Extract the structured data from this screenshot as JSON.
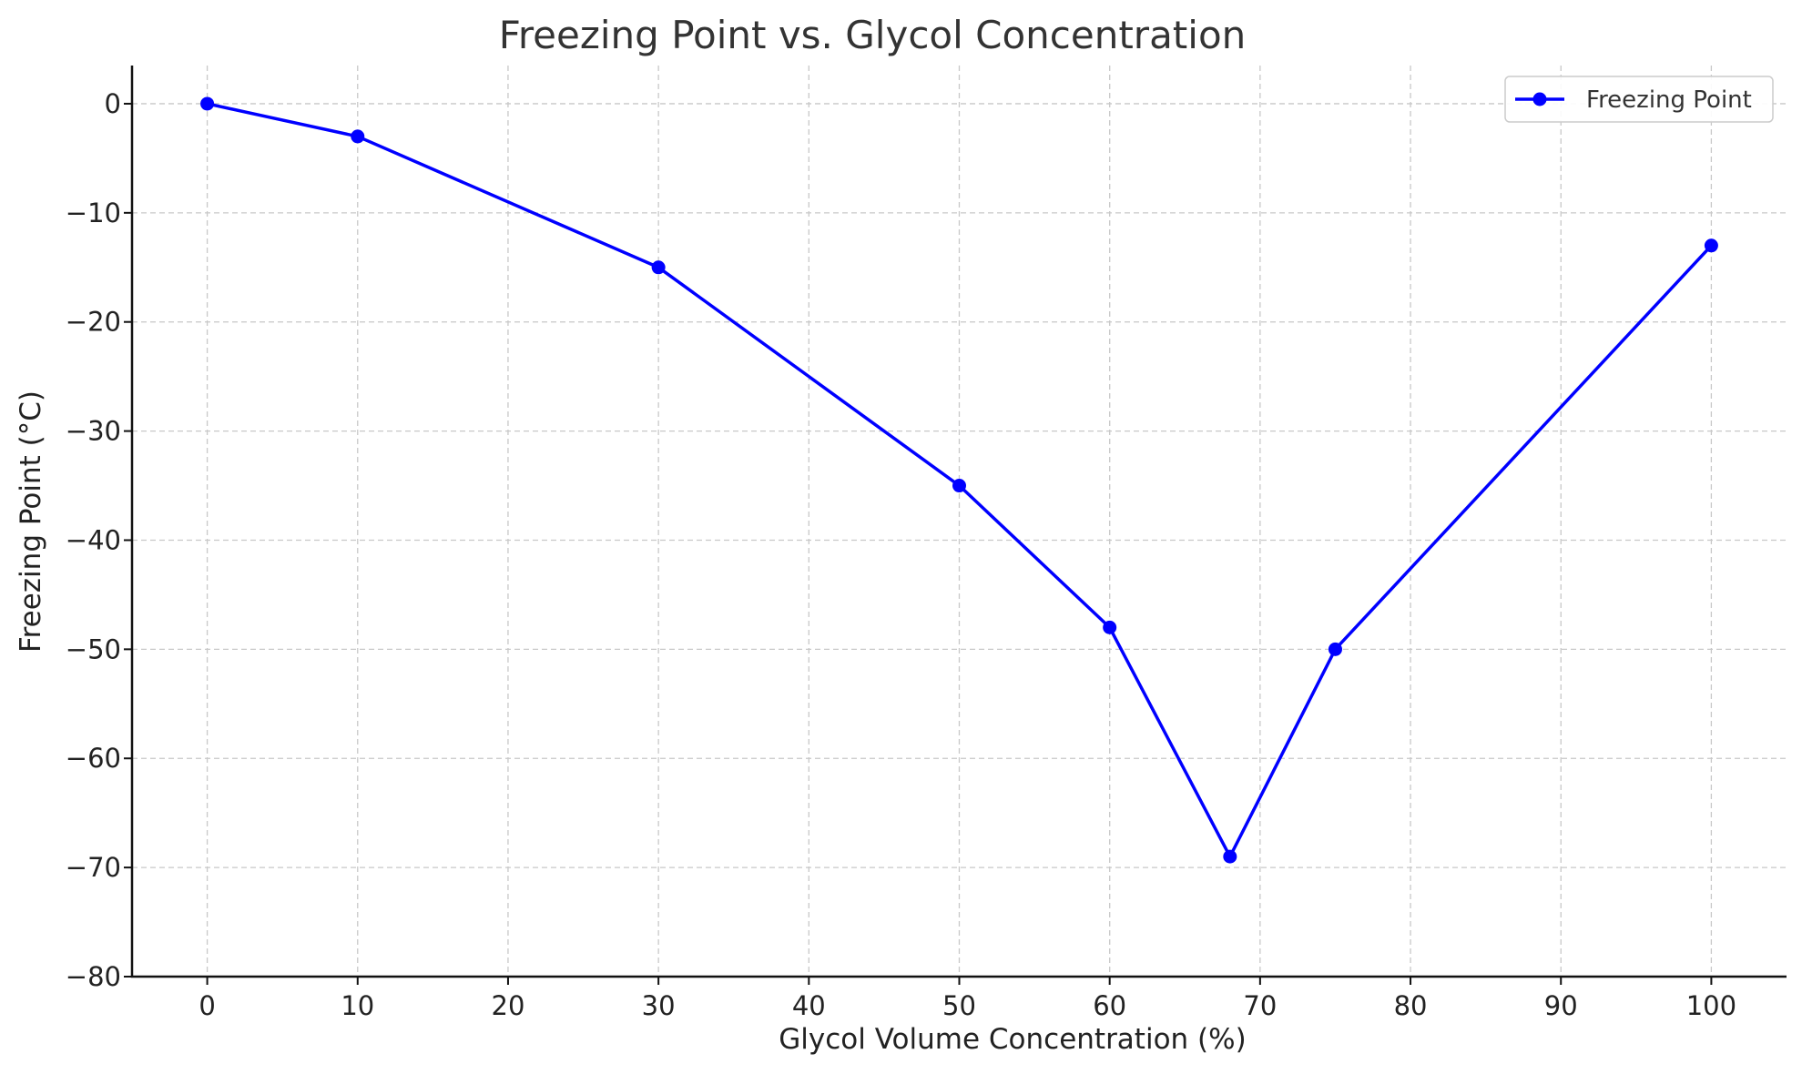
{
  "chart_data": {
    "type": "line",
    "title": "Freezing Point vs. Glycol Concentration",
    "xlabel": "Glycol Volume Concentration (%)",
    "ylabel": "Freezing Point (°C)",
    "xlim": [
      -5,
      105
    ],
    "ylim": [
      -80,
      3.5
    ],
    "xticks": [
      0,
      10,
      20,
      30,
      40,
      50,
      60,
      70,
      80,
      90,
      100
    ],
    "yticks": [
      0,
      -10,
      -20,
      -30,
      -40,
      -50,
      -60,
      -70,
      -80
    ],
    "xtick_labels": [
      "0",
      "10",
      "20",
      "30",
      "40",
      "50",
      "60",
      "70",
      "80",
      "90",
      "100"
    ],
    "ytick_labels": [
      "0",
      "−10",
      "−20",
      "−30",
      "−40",
      "−50",
      "−60",
      "−70",
      "−80"
    ],
    "grid": true,
    "legend_position": "top-right",
    "series": [
      {
        "name": "Freezing Point",
        "color": "#0000ff",
        "marker": "circle",
        "x": [
          0,
          10,
          30,
          50,
          60,
          68,
          75,
          100
        ],
        "y": [
          0,
          -3,
          -15,
          -35,
          -48,
          -69,
          -50,
          -13
        ]
      }
    ]
  }
}
